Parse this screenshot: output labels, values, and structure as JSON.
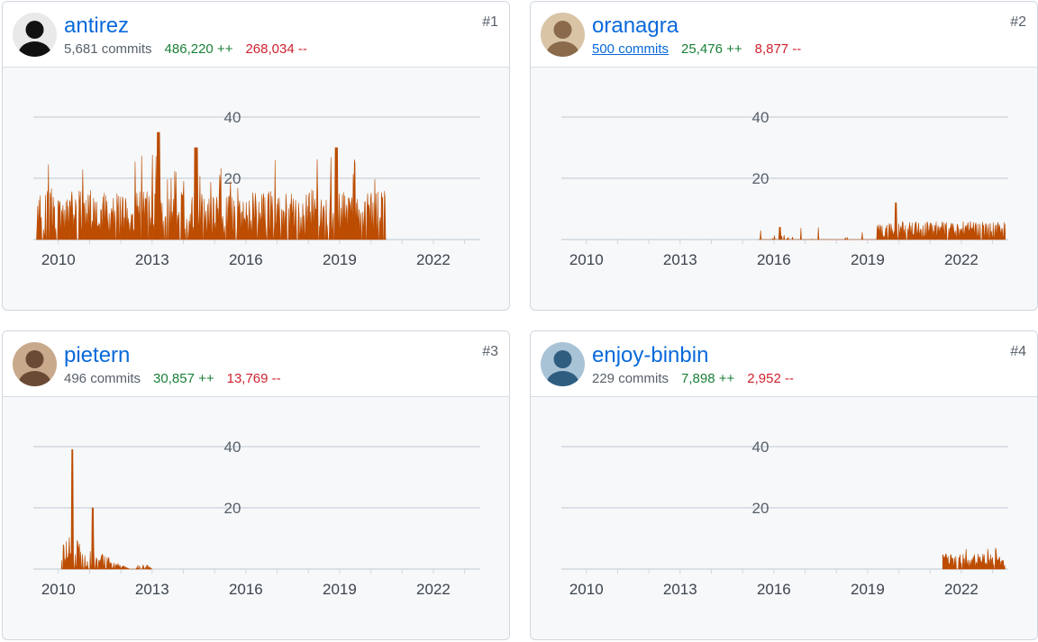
{
  "contributors": [
    {
      "name": "antirez",
      "commits": "5,681 commits",
      "additions": "486,220 ++",
      "deletions": "268,034 --",
      "rank": "#1",
      "commits_link": false,
      "avatar_icon": "avatar-dark-portrait-icon",
      "activity": {
        "start": 2009.3,
        "end": 2020.5,
        "weekly_peaks": [
          26,
          36,
          30,
          31
        ],
        "scale": "high"
      }
    },
    {
      "name": "oranagra",
      "commits": "500 commits",
      "additions": "25,476 ++",
      "deletions": "8,877 --",
      "rank": "#2",
      "commits_link": true,
      "avatar_icon": "avatar-portrait-icon",
      "activity": {
        "start": 2015.5,
        "end": 2023.4,
        "weekly_peaks": [
          12,
          9
        ],
        "scale": "low"
      }
    },
    {
      "name": "pietern",
      "commits": "496 commits",
      "additions": "30,857 ++",
      "deletions": "13,769 --",
      "rank": "#3",
      "commits_link": false,
      "avatar_icon": "avatar-portrait-icon",
      "activity": {
        "start": 2010.1,
        "end": 2013.0,
        "weekly_peaks": [
          39,
          20
        ],
        "scale": "burst"
      }
    },
    {
      "name": "enjoy-binbin",
      "commits": "229 commits",
      "additions": "7,898 ++",
      "deletions": "2,952 --",
      "rank": "#4",
      "commits_link": false,
      "avatar_icon": "avatar-portrait-icon",
      "activity": {
        "start": 2021.4,
        "end": 2023.4,
        "weekly_peaks": [
          7
        ],
        "scale": "recent"
      }
    }
  ],
  "chart_data": {
    "type": "area",
    "x_ticks": [
      "2010",
      "2013",
      "2016",
      "2019",
      "2022"
    ],
    "y_ticks": [
      "20",
      "40"
    ],
    "ylim": [
      0,
      40
    ],
    "xlim": [
      2009.2,
      2023.5
    ],
    "grid": true,
    "series_color": "#bc4c00"
  },
  "colors": {
    "accent": "#0969da",
    "additions": "#1a7f37",
    "deletions": "#cf222e",
    "area": "#bc4c00"
  }
}
